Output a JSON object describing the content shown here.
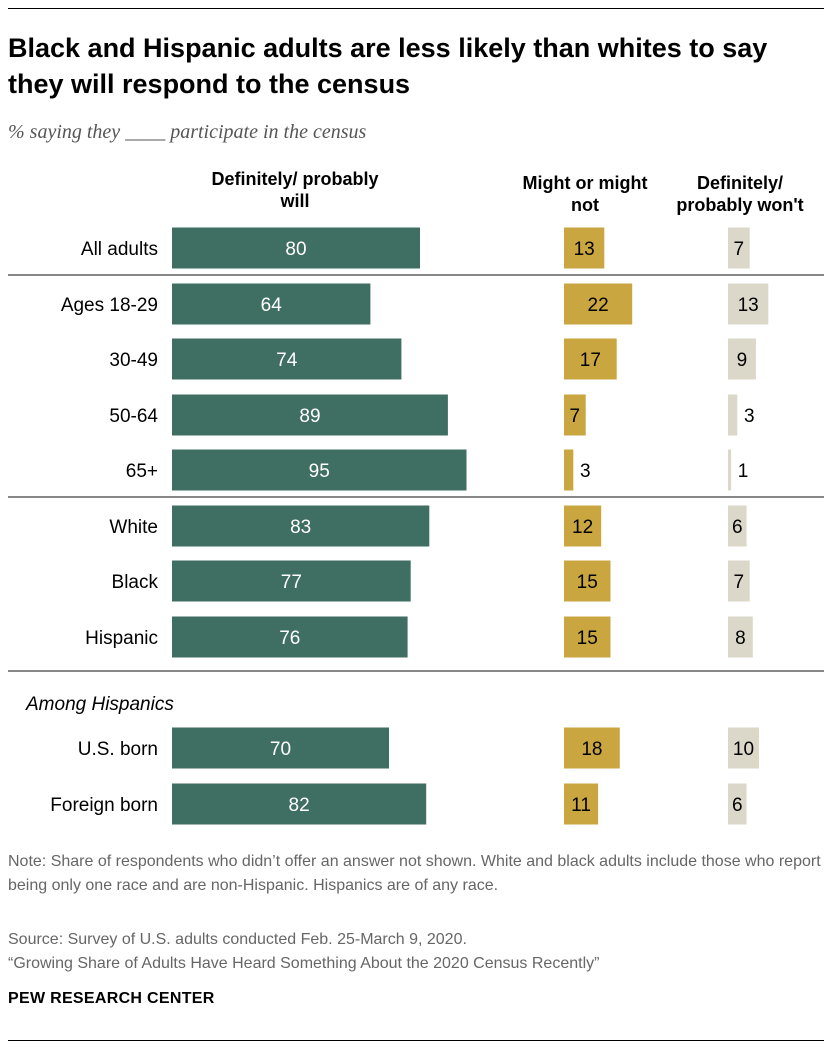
{
  "title": "Black and Hispanic adults are less likely than whites to say they will respond to the census",
  "subtitle": "% saying they ____ participate in the census",
  "chart_data": {
    "type": "bar",
    "orientation": "horizontal",
    "series": [
      {
        "name": "Definitely/ probably will",
        "color": "#3f6e62",
        "values": [
          80,
          64,
          74,
          89,
          95,
          83,
          77,
          76,
          70,
          82
        ]
      },
      {
        "name": "Might or might not",
        "color": "#c9a640",
        "values": [
          13,
          22,
          17,
          7,
          3,
          12,
          15,
          15,
          18,
          11
        ]
      },
      {
        "name": "Definitely/ probably won't",
        "color": "#dbd8ca",
        "values": [
          7,
          13,
          9,
          3,
          1,
          6,
          7,
          8,
          10,
          6
        ]
      }
    ],
    "categories": [
      "All adults",
      "Ages 18-29",
      "30-49",
      "50-64",
      "65+",
      "White",
      "Black",
      "Hispanic",
      "U.S. born",
      "Foreign born"
    ],
    "group_label": "Among Hispanics"
  },
  "headers": [
    "Definitely/ probably will",
    "Might or might not",
    "Definitely/ probably won't"
  ],
  "notes": {
    "note": "Note: Share of respondents who didn’t offer an answer not shown. White and black adults include those who report being only one race and are non-Hispanic. Hispanics are of any race.",
    "source": "Source: Survey of U.S. adults conducted Feb. 25-March 9, 2020.",
    "report": "“Growing Share of Adults Have Heard Something About the 2020 Census Recently”",
    "brand": "PEW RESEARCH CENTER"
  }
}
